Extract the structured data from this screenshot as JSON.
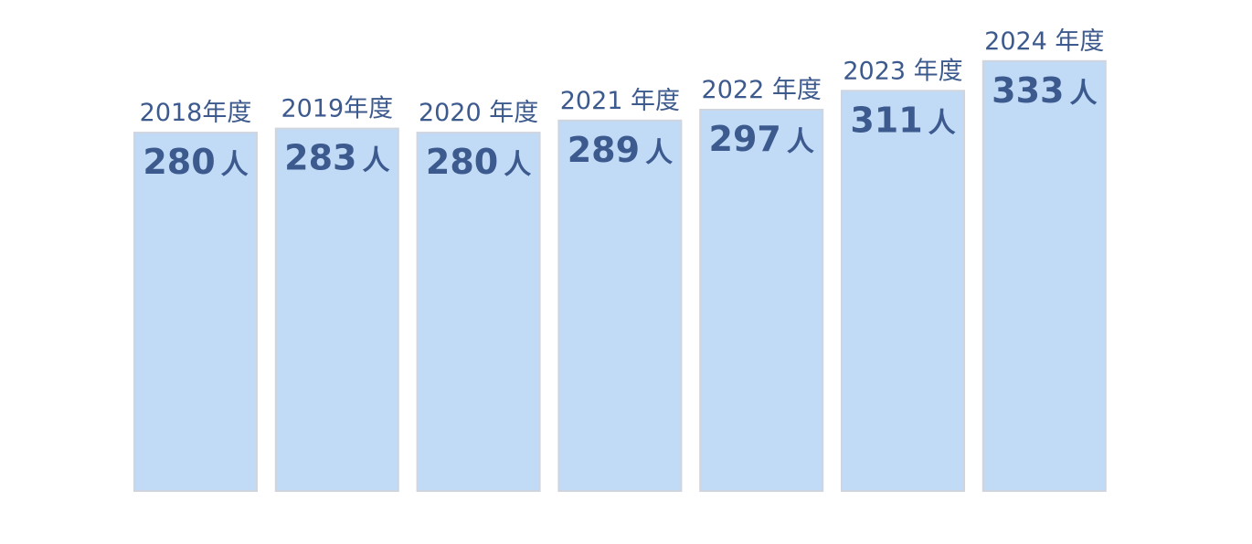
{
  "chart_data": {
    "type": "bar",
    "categories": [
      "2018年度",
      "2019年度",
      "2020 年度",
      "2021 年度",
      "2022 年度",
      "2023 年度",
      "2024 年度"
    ],
    "values": [
      280,
      283,
      280,
      289,
      297,
      311,
      333
    ],
    "value_unit": "人",
    "title": "",
    "xlabel": "",
    "ylabel": "",
    "legend": "none",
    "grid": false,
    "colors": {
      "bar_fill": "#c1dbf7",
      "bar_stroke": "#cfd5de",
      "label_text": "#3d5a8e"
    }
  }
}
